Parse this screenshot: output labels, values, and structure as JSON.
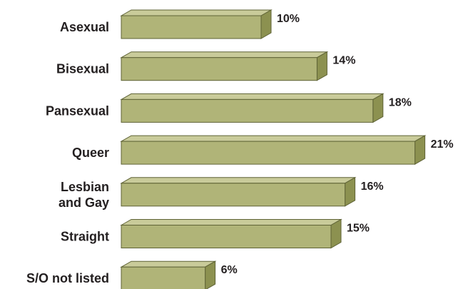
{
  "chart_data": {
    "type": "bar",
    "orientation": "horizontal",
    "style": "3d",
    "categories": [
      "Asexual",
      "Bisexual",
      "Pansexual",
      "Queer",
      "Lesbian and Gay",
      "Straight",
      "S/O not listed"
    ],
    "category_lines": [
      [
        "Asexual"
      ],
      [
        "Bisexual"
      ],
      [
        "Pansexual"
      ],
      [
        "Queer"
      ],
      [
        "Lesbian",
        "and Gay"
      ],
      [
        "Straight"
      ],
      [
        "S/O not listed"
      ]
    ],
    "values": [
      10,
      14,
      18,
      21,
      16,
      15,
      6
    ],
    "value_labels": [
      "10%",
      "14%",
      "18%",
      "21%",
      "16%",
      "15%",
      "6%"
    ],
    "unit": "%",
    "grid": false,
    "axes_visible": false,
    "colors": {
      "front": "#b0b478",
      "top": "#c9cb9a",
      "side": "#8c9150",
      "edge": "#5f6336",
      "text": "#231f20"
    }
  }
}
